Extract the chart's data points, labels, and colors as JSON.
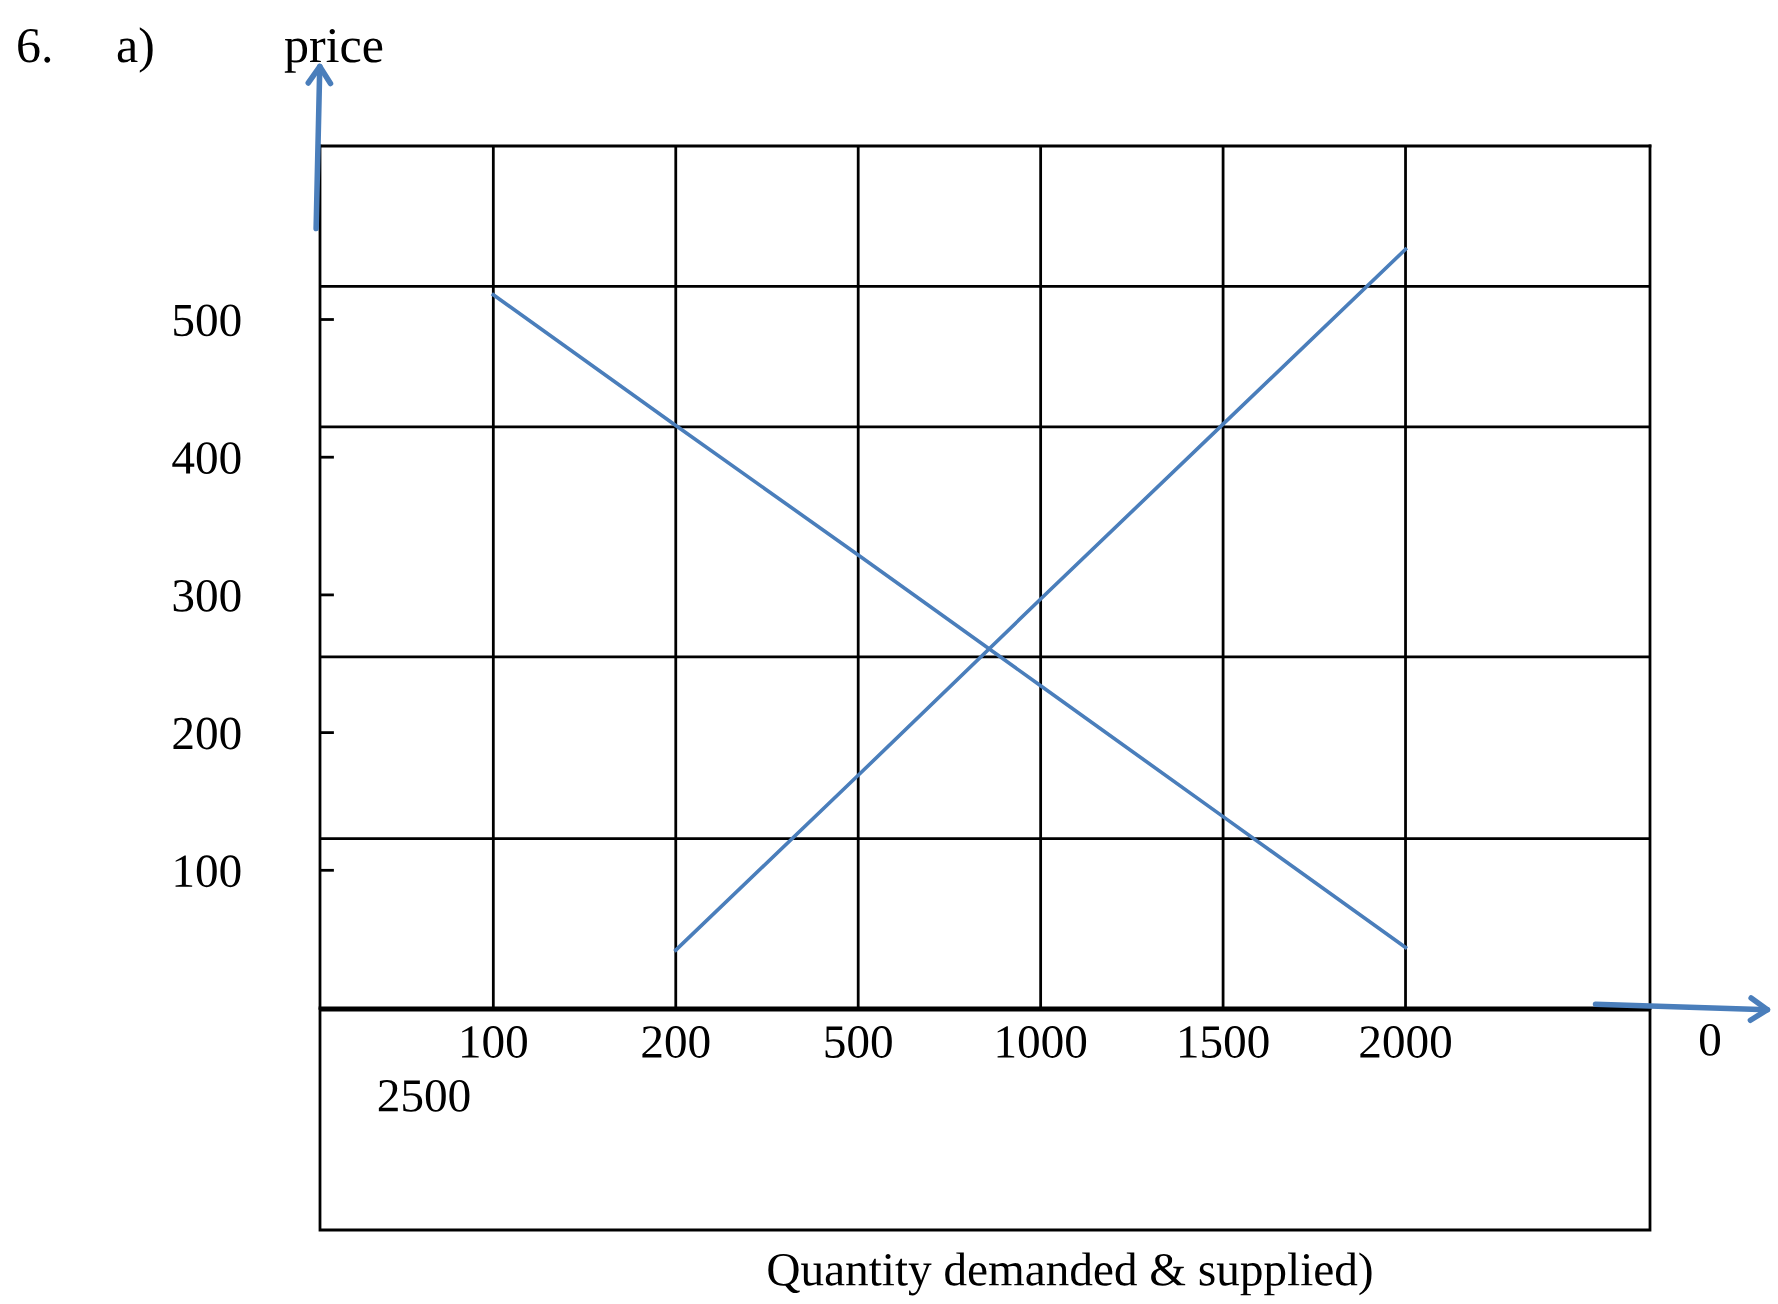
{
  "chart_data": {
    "type": "line",
    "title": "6.     a)",
    "ylabel": "price",
    "xlabel": "Quantity demanded & supplied)",
    "annotations": [
      "2500",
      "0"
    ],
    "categories": [
      "100",
      "200",
      "500",
      "1000",
      "1500",
      "2000"
    ],
    "ylim": [
      0,
      626
    ],
    "yticks": [
      100,
      200,
      300,
      400,
      500
    ],
    "ref_lines": [
      {
        "axis": "y",
        "value": 524,
        "color": "#000000"
      },
      {
        "axis": "y",
        "value": 422,
        "color": "#000000"
      },
      {
        "axis": "y",
        "value": 255,
        "color": "#000000"
      },
      {
        "axis": "y",
        "value": 123,
        "color": "#000000"
      }
    ],
    "series": [
      {
        "color": "#4a7ebb",
        "values": [
          518,
          423,
          329,
          234,
          139,
          44
        ]
      },
      {
        "color": "#4a7ebb",
        "values": [
          null,
          42,
          169,
          297,
          424,
          551
        ]
      }
    ],
    "grid": "x",
    "legend": false,
    "marker": "none",
    "line_style": "solid"
  }
}
